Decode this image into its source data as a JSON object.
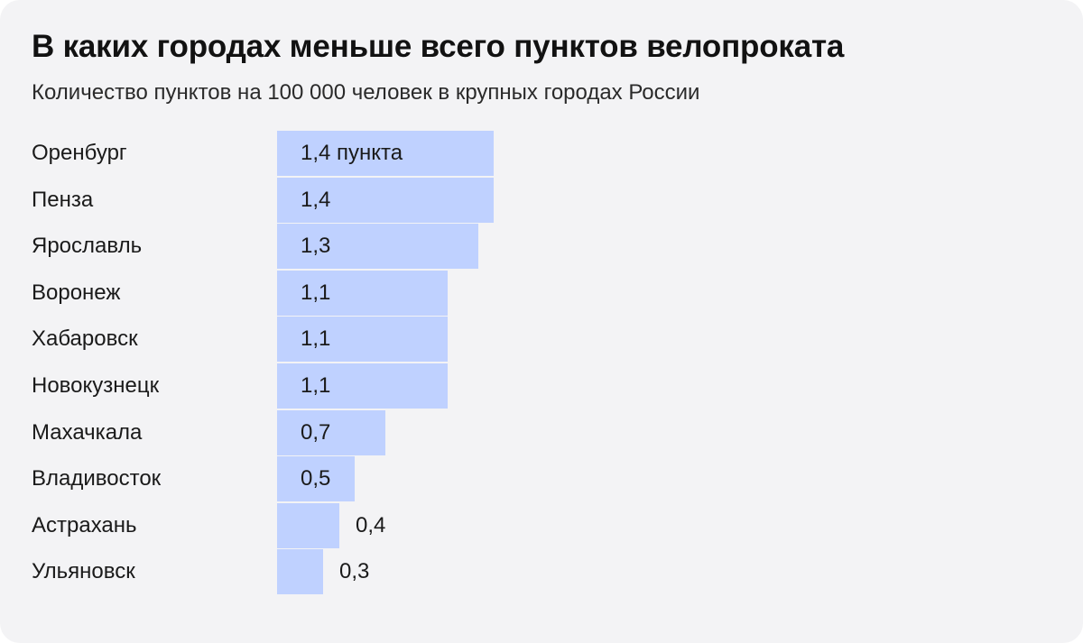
{
  "chart_data": {
    "type": "bar",
    "orientation": "horizontal",
    "title": "В каких городах меньше всего пунктов велопроката",
    "subtitle": "Количество пунктов на 100 000 человек в крупных городах России",
    "categories": [
      "Оренбург",
      "Пенза",
      "Ярославль",
      "Воронеж",
      "Хабаровск",
      "Новокузнецк",
      "Махачкала",
      "Владивосток",
      "Астрахань",
      "Ульяновск"
    ],
    "values": [
      1.4,
      1.4,
      1.3,
      1.1,
      1.1,
      1.1,
      0.7,
      0.5,
      0.4,
      0.3
    ],
    "labels": [
      "1,4 пункта",
      "1,4",
      "1,3",
      "1,1",
      "1,1",
      "1,1",
      "0,7",
      "0,5",
      "0,4",
      "0,3"
    ],
    "bar_color": "#bfd1ff",
    "background_color": "#f3f3f5",
    "xlim": [
      0,
      1.4
    ],
    "grid": false,
    "legend": "none"
  }
}
